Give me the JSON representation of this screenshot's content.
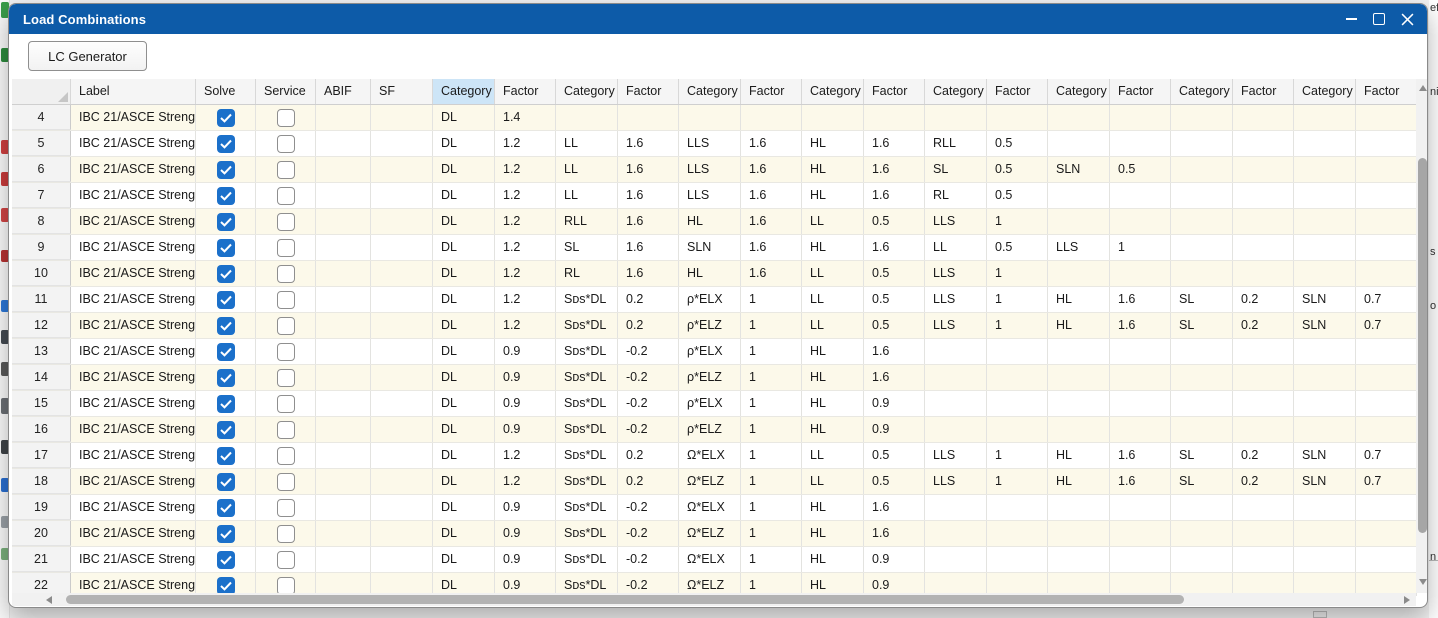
{
  "window": {
    "title": "Load Combinations"
  },
  "toolbar": {
    "lc_generator_label": "LC Generator"
  },
  "colors": {
    "titlebar": "#0d5ba8",
    "checkbox_checked": "#1b70ca",
    "header_highlight": "#cde5f7",
    "row_stripe": "#fcf9ea"
  },
  "background": {
    "right_texts": [
      "ef",
      "ni",
      "s",
      "o",
      "n"
    ]
  },
  "table": {
    "headers": [
      "",
      "Label",
      "Solve",
      "Service",
      "ABIF",
      "SF",
      "Category",
      "Factor",
      "Category",
      "Factor",
      "Category",
      "Factor",
      "Category",
      "Factor",
      "Category",
      "Factor",
      "Category",
      "Factor",
      "Category",
      "Factor",
      "Category",
      "Factor"
    ],
    "highlighted_header_index": 6,
    "rows": [
      {
        "num": "4",
        "label": "IBC 21/ASCE Streng...",
        "solve": true,
        "service": false,
        "abif": "",
        "sf": "",
        "pairs": [
          [
            "DL",
            "1.4"
          ]
        ]
      },
      {
        "num": "5",
        "label": "IBC 21/ASCE Streng...",
        "solve": true,
        "service": false,
        "abif": "",
        "sf": "",
        "pairs": [
          [
            "DL",
            "1.2"
          ],
          [
            "LL",
            "1.6"
          ],
          [
            "LLS",
            "1.6"
          ],
          [
            "HL",
            "1.6"
          ],
          [
            "RLL",
            "0.5"
          ]
        ]
      },
      {
        "num": "6",
        "label": "IBC 21/ASCE Streng...",
        "solve": true,
        "service": false,
        "abif": "",
        "sf": "",
        "pairs": [
          [
            "DL",
            "1.2"
          ],
          [
            "LL",
            "1.6"
          ],
          [
            "LLS",
            "1.6"
          ],
          [
            "HL",
            "1.6"
          ],
          [
            "SL",
            "0.5"
          ],
          [
            "SLN",
            "0.5"
          ]
        ]
      },
      {
        "num": "7",
        "label": "IBC 21/ASCE Streng...",
        "solve": true,
        "service": false,
        "abif": "",
        "sf": "",
        "pairs": [
          [
            "DL",
            "1.2"
          ],
          [
            "LL",
            "1.6"
          ],
          [
            "LLS",
            "1.6"
          ],
          [
            "HL",
            "1.6"
          ],
          [
            "RL",
            "0.5"
          ]
        ]
      },
      {
        "num": "8",
        "label": "IBC 21/ASCE Streng...",
        "solve": true,
        "service": false,
        "abif": "",
        "sf": "",
        "pairs": [
          [
            "DL",
            "1.2"
          ],
          [
            "RLL",
            "1.6"
          ],
          [
            "HL",
            "1.6"
          ],
          [
            "LL",
            "0.5"
          ],
          [
            "LLS",
            "1"
          ]
        ]
      },
      {
        "num": "9",
        "label": "IBC 21/ASCE Streng...",
        "solve": true,
        "service": false,
        "abif": "",
        "sf": "",
        "pairs": [
          [
            "DL",
            "1.2"
          ],
          [
            "SL",
            "1.6"
          ],
          [
            "SLN",
            "1.6"
          ],
          [
            "HL",
            "1.6"
          ],
          [
            "LL",
            "0.5"
          ],
          [
            "LLS",
            "1"
          ]
        ]
      },
      {
        "num": "10",
        "label": "IBC 21/ASCE Streng...",
        "solve": true,
        "service": false,
        "abif": "",
        "sf": "",
        "pairs": [
          [
            "DL",
            "1.2"
          ],
          [
            "RL",
            "1.6"
          ],
          [
            "HL",
            "1.6"
          ],
          [
            "LL",
            "0.5"
          ],
          [
            "LLS",
            "1"
          ]
        ]
      },
      {
        "num": "11",
        "label": "IBC 21/ASCE Streng...",
        "solve": true,
        "service": false,
        "abif": "",
        "sf": "",
        "pairs": [
          [
            "DL",
            "1.2"
          ],
          [
            "Sᴅs*DL",
            "0.2"
          ],
          [
            "ρ*ELX",
            "1"
          ],
          [
            "LL",
            "0.5"
          ],
          [
            "LLS",
            "1"
          ],
          [
            "HL",
            "1.6"
          ],
          [
            "SL",
            "0.2"
          ],
          [
            "SLN",
            "0.7"
          ]
        ]
      },
      {
        "num": "12",
        "label": "IBC 21/ASCE Streng...",
        "solve": true,
        "service": false,
        "abif": "",
        "sf": "",
        "pairs": [
          [
            "DL",
            "1.2"
          ],
          [
            "Sᴅs*DL",
            "0.2"
          ],
          [
            "ρ*ELZ",
            "1"
          ],
          [
            "LL",
            "0.5"
          ],
          [
            "LLS",
            "1"
          ],
          [
            "HL",
            "1.6"
          ],
          [
            "SL",
            "0.2"
          ],
          [
            "SLN",
            "0.7"
          ]
        ]
      },
      {
        "num": "13",
        "label": "IBC 21/ASCE Streng...",
        "solve": true,
        "service": false,
        "abif": "",
        "sf": "",
        "pairs": [
          [
            "DL",
            "0.9"
          ],
          [
            "Sᴅs*DL",
            "-0.2"
          ],
          [
            "ρ*ELX",
            "1"
          ],
          [
            "HL",
            "1.6"
          ]
        ]
      },
      {
        "num": "14",
        "label": "IBC 21/ASCE Streng...",
        "solve": true,
        "service": false,
        "abif": "",
        "sf": "",
        "pairs": [
          [
            "DL",
            "0.9"
          ],
          [
            "Sᴅs*DL",
            "-0.2"
          ],
          [
            "ρ*ELZ",
            "1"
          ],
          [
            "HL",
            "1.6"
          ]
        ]
      },
      {
        "num": "15",
        "label": "IBC 21/ASCE Streng...",
        "solve": true,
        "service": false,
        "abif": "",
        "sf": "",
        "pairs": [
          [
            "DL",
            "0.9"
          ],
          [
            "Sᴅs*DL",
            "-0.2"
          ],
          [
            "ρ*ELX",
            "1"
          ],
          [
            "HL",
            "0.9"
          ]
        ]
      },
      {
        "num": "16",
        "label": "IBC 21/ASCE Streng...",
        "solve": true,
        "service": false,
        "abif": "",
        "sf": "",
        "pairs": [
          [
            "DL",
            "0.9"
          ],
          [
            "Sᴅs*DL",
            "-0.2"
          ],
          [
            "ρ*ELZ",
            "1"
          ],
          [
            "HL",
            "0.9"
          ]
        ]
      },
      {
        "num": "17",
        "label": "IBC 21/ASCE Streng...",
        "solve": true,
        "service": false,
        "abif": "",
        "sf": "",
        "pairs": [
          [
            "DL",
            "1.2"
          ],
          [
            "Sᴅs*DL",
            "0.2"
          ],
          [
            "Ω*ELX",
            "1"
          ],
          [
            "LL",
            "0.5"
          ],
          [
            "LLS",
            "1"
          ],
          [
            "HL",
            "1.6"
          ],
          [
            "SL",
            "0.2"
          ],
          [
            "SLN",
            "0.7"
          ]
        ]
      },
      {
        "num": "18",
        "label": "IBC 21/ASCE Streng...",
        "solve": true,
        "service": false,
        "abif": "",
        "sf": "",
        "pairs": [
          [
            "DL",
            "1.2"
          ],
          [
            "Sᴅs*DL",
            "0.2"
          ],
          [
            "Ω*ELZ",
            "1"
          ],
          [
            "LL",
            "0.5"
          ],
          [
            "LLS",
            "1"
          ],
          [
            "HL",
            "1.6"
          ],
          [
            "SL",
            "0.2"
          ],
          [
            "SLN",
            "0.7"
          ]
        ]
      },
      {
        "num": "19",
        "label": "IBC 21/ASCE Streng...",
        "solve": true,
        "service": false,
        "abif": "",
        "sf": "",
        "pairs": [
          [
            "DL",
            "0.9"
          ],
          [
            "Sᴅs*DL",
            "-0.2"
          ],
          [
            "Ω*ELX",
            "1"
          ],
          [
            "HL",
            "1.6"
          ]
        ]
      },
      {
        "num": "20",
        "label": "IBC 21/ASCE Streng...",
        "solve": true,
        "service": false,
        "abif": "",
        "sf": "",
        "pairs": [
          [
            "DL",
            "0.9"
          ],
          [
            "Sᴅs*DL",
            "-0.2"
          ],
          [
            "Ω*ELZ",
            "1"
          ],
          [
            "HL",
            "1.6"
          ]
        ]
      },
      {
        "num": "21",
        "label": "IBC 21/ASCE Streng...",
        "solve": true,
        "service": false,
        "abif": "",
        "sf": "",
        "pairs": [
          [
            "DL",
            "0.9"
          ],
          [
            "Sᴅs*DL",
            "-0.2"
          ],
          [
            "Ω*ELX",
            "1"
          ],
          [
            "HL",
            "0.9"
          ]
        ]
      },
      {
        "num": "22",
        "label": "IBC 21/ASCE Streng...",
        "solve": true,
        "service": false,
        "abif": "",
        "sf": "",
        "pairs": [
          [
            "DL",
            "0.9"
          ],
          [
            "Sᴅs*DL",
            "-0.2"
          ],
          [
            "Ω*ELZ",
            "1"
          ],
          [
            "HL",
            "0.9"
          ]
        ]
      }
    ]
  }
}
